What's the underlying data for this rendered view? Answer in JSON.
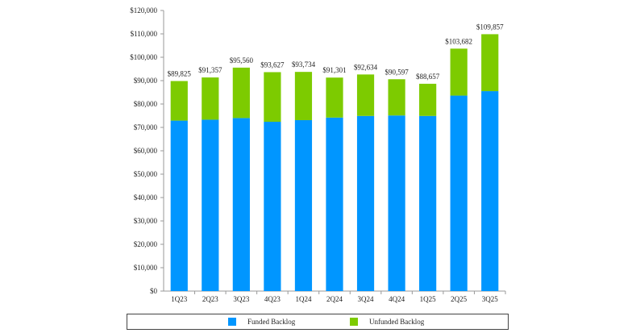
{
  "chart_data": {
    "type": "bar",
    "stacked": true,
    "categories": [
      "1Q23",
      "2Q23",
      "3Q23",
      "4Q23",
      "1Q24",
      "2Q24",
      "3Q24",
      "4Q24",
      "1Q25",
      "2Q25",
      "3Q25"
    ],
    "series": [
      {
        "name": "Funded Backlog",
        "color": "#0096FF",
        "values": [
          72900,
          73300,
          74000,
          72400,
          73100,
          74200,
          74900,
          75100,
          74900,
          83600,
          85500
        ]
      },
      {
        "name": "Unfunded Backlog",
        "color": "#7DCB00",
        "values": [
          16925,
          18057,
          21560,
          21227,
          20634,
          17101,
          17734,
          15497,
          13757,
          20082,
          24357
        ]
      }
    ],
    "totals": [
      89825,
      91357,
      95560,
      93627,
      93734,
      91301,
      92634,
      90597,
      88657,
      103682,
      109857
    ],
    "total_labels": [
      "$89,825",
      "$91,357",
      "$95,560",
      "$93,627",
      "$93,734",
      "$91,301",
      "$92,634",
      "$90,597",
      "$88,657",
      "$103,682",
      "$109,857"
    ],
    "y_ticks": [
      "$0",
      "$10,000",
      "$20,000",
      "$30,000",
      "$40,000",
      "$50,000",
      "$60,000",
      "$70,000",
      "$80,000",
      "$90,000",
      "$100,000",
      "$110,000",
      "$120,000"
    ],
    "ylim": [
      0,
      120000
    ],
    "grid": false,
    "legend": "bottom",
    "title": "",
    "xlabel": "",
    "ylabel": ""
  }
}
